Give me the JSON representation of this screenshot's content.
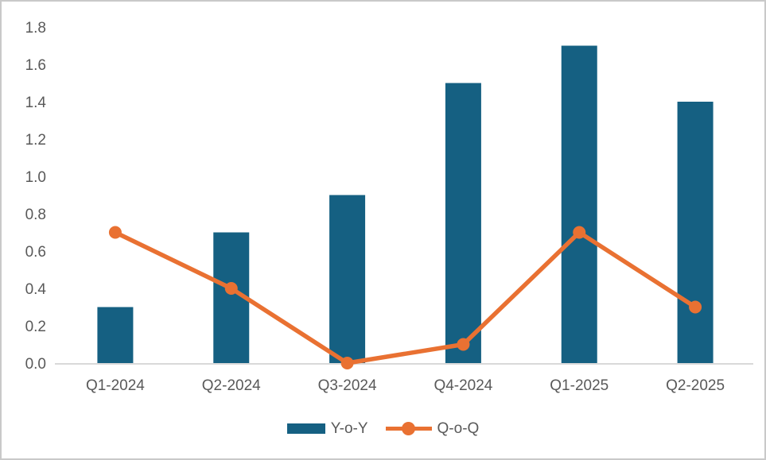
{
  "chart_data": {
    "type": "bar",
    "subtype": "bar-line-combo",
    "title": "",
    "xlabel": "",
    "ylabel": "",
    "categories": [
      "Q1-2024",
      "Q2-2024",
      "Q3-2024",
      "Q4-2024",
      "Q1-2025",
      "Q2-2025"
    ],
    "series": [
      {
        "name": "Y-o-Y",
        "type": "bar",
        "color": "#156082",
        "values": [
          0.3,
          0.7,
          0.9,
          1.5,
          1.7,
          1.4
        ]
      },
      {
        "name": "Q-o-Q",
        "type": "line",
        "color": "#E97132",
        "values": [
          0.7,
          0.4,
          0.0,
          0.1,
          0.7,
          0.3
        ]
      }
    ],
    "ylim": [
      0,
      1.8
    ],
    "y_tick_labels": [
      "0.0",
      "0.2",
      "0.4",
      "0.6",
      "0.8",
      "1.0",
      "1.2",
      "1.4",
      "1.6",
      "1.8"
    ],
    "grid": false,
    "legend_position": "bottom"
  },
  "colors": {
    "bar": "#156082",
    "line": "#E97132",
    "axis_line": "#D9D9D9",
    "tick_text": "#595959",
    "frame_border": "#C9C9C9",
    "background": "#FFFFFF"
  }
}
